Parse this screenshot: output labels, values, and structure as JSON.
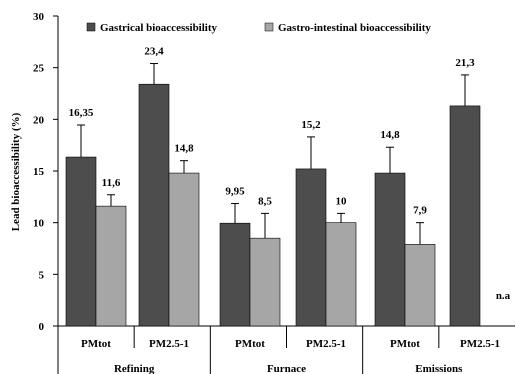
{
  "chart_data": {
    "type": "bar",
    "title": "",
    "ylabel": "Lead bioaccessibility (%)",
    "ylim": [
      0,
      30
    ],
    "yticks": [
      0,
      5,
      10,
      15,
      20,
      25,
      30
    ],
    "grid": false,
    "legend_position": "top",
    "groups": [
      {
        "label": "Refining",
        "categories": [
          "PMtot",
          "PM2.5-1"
        ]
      },
      {
        "label": "Furnace",
        "categories": [
          "PMtot",
          "PM2.5-1"
        ]
      },
      {
        "label": "Emissions",
        "categories": [
          "PMtot",
          "PM2.5-1"
        ]
      }
    ],
    "series": [
      {
        "name": "Gastrical bioaccessibility",
        "color": "#4d4d4d",
        "values": [
          16.35,
          23.4,
          9.95,
          15.2,
          14.8,
          21.3
        ],
        "value_labels": [
          "16,35",
          "23,4",
          "9,95",
          "15,2",
          "14,8",
          "21,3"
        ],
        "error_upper": [
          3.1,
          2.0,
          1.9,
          3.1,
          2.5,
          3.0
        ]
      },
      {
        "name": "Gastro-intestinal bioaccessibility",
        "color": "#a6a6a6",
        "values": [
          11.6,
          14.8,
          8.5,
          10,
          7.9,
          null
        ],
        "value_labels": [
          "11,6",
          "14,8",
          "8,5",
          "10",
          "7,9",
          "n.a"
        ],
        "error_upper": [
          1.1,
          1.2,
          2.4,
          0.9,
          2.1,
          null
        ]
      }
    ]
  }
}
